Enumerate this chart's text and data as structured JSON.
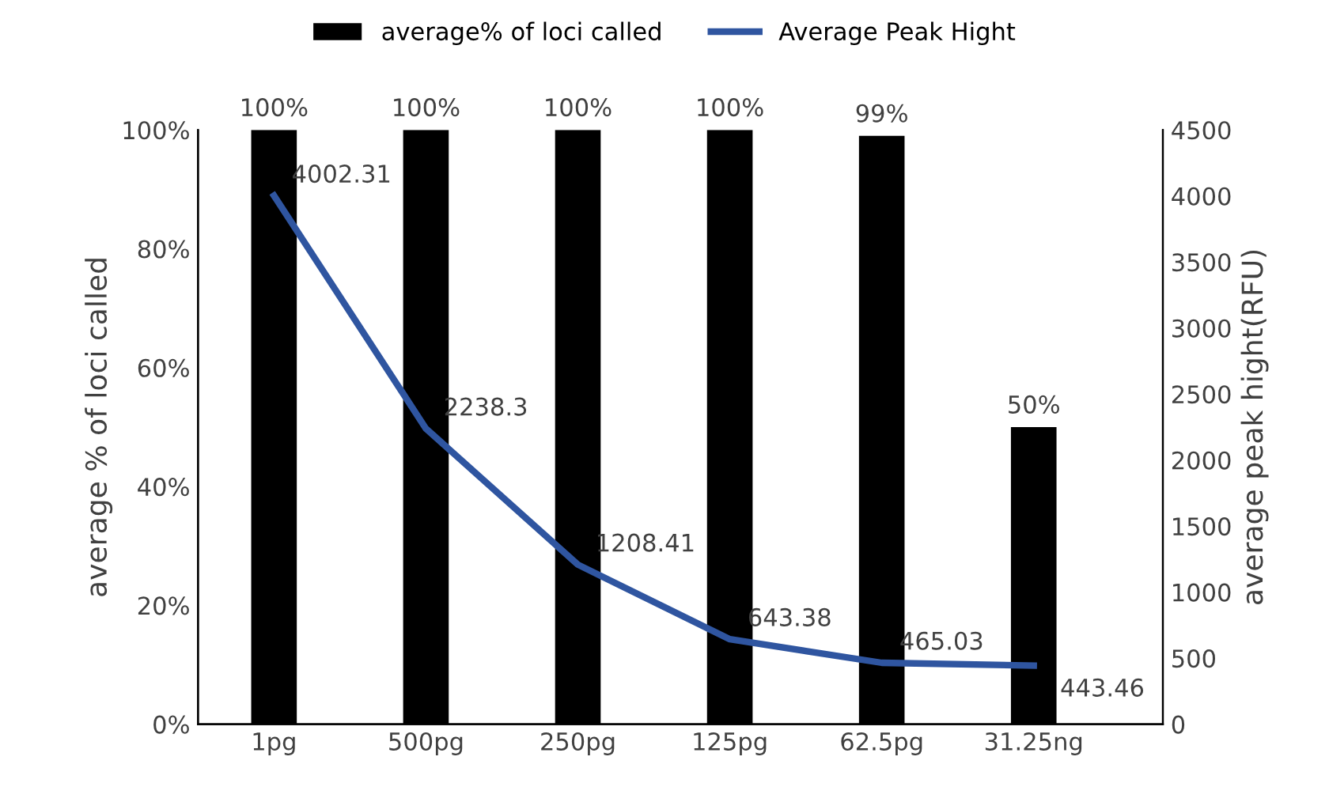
{
  "chart_data": {
    "type": "bar",
    "categories": [
      "1pg",
      "500pg",
      "250pg",
      "125pg",
      "62.5pg",
      "31.25ng"
    ],
    "ylabel": "average % of loci called",
    "y2label": "average peak hight(RFU)",
    "ylim": [
      0,
      100
    ],
    "yticks": [
      {
        "value": 0,
        "label": "0%"
      },
      {
        "value": 20,
        "label": "20%"
      },
      {
        "value": 40,
        "label": "40%"
      },
      {
        "value": 60,
        "label": "60%"
      },
      {
        "value": 80,
        "label": "80%"
      },
      {
        "value": 100,
        "label": "100%"
      }
    ],
    "y2lim": [
      0,
      4500
    ],
    "y2ticks": [
      0,
      500,
      1000,
      1500,
      2000,
      2500,
      3000,
      3500,
      4000,
      4500
    ],
    "grid": false,
    "legend": "top",
    "series": [
      {
        "name": "average% of loci called",
        "color": "#000000",
        "values": [
          100,
          100,
          100,
          100,
          99,
          50
        ],
        "value_labels": [
          "100%",
          "100%",
          "100%",
          "100%",
          "99%",
          "50%"
        ]
      },
      {
        "name": "Average Peak Hight",
        "type": "line",
        "axis": "y2",
        "color": "#2f55a0",
        "values": [
          4002.31,
          2238.3,
          1208.41,
          643.38,
          465.03,
          443.46
        ],
        "value_labels": [
          "4002.31",
          "2238.3",
          "1208.41",
          "643.38",
          "465.03",
          "443.46"
        ]
      }
    ]
  }
}
